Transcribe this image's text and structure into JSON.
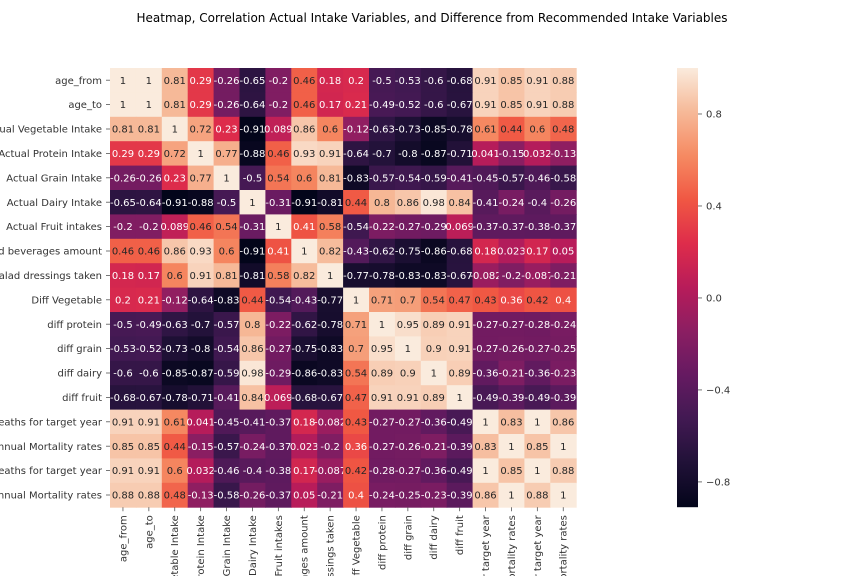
{
  "chart_data": {
    "type": "heatmap",
    "title": "Heatmap, Correlation Actual Intake Variables, and Difference from Recommended Intake Variables",
    "row_labels": [
      "age_from",
      "age_to",
      "ual Vegetable Intake",
      "Actual Protein Intake",
      "Actual Grain Intake",
      "Actual Dairy Intake",
      "Actual Fruit intakes",
      "d beverages amount",
      "alad dressings taken",
      "Diff Vegetable",
      "diff protein",
      "diff grain",
      "diff dairy",
      "diff fruit",
      "eaths for target year",
      "nnual Mortality rates",
      "eaths for target year",
      "nnual Mortality rates"
    ],
    "col_labels": [
      "age_from",
      "age_to",
      "etable Intake",
      "rotein Intake",
      "Grain Intake",
      "Dairy Intake",
      "Fruit intakes",
      "ages amount",
      "essings taken",
      "iff Vegetable",
      "diff protein",
      "diff grain",
      "diff dairy",
      "diff fruit",
      "r target year",
      "ortality rates",
      "r target year",
      "ortality rates"
    ],
    "cell_labels": [
      [
        "1",
        "1",
        "0.81",
        "0.29",
        "-0.26",
        "-0.65",
        "-0.2",
        "0.46",
        "0.18",
        "0.2",
        "-0.5",
        "-0.53",
        "-0.6",
        "-0.68",
        "0.91",
        "0.85",
        "0.91",
        "0.88"
      ],
      [
        "1",
        "1",
        "0.81",
        "0.29",
        "-0.26",
        "-0.64",
        "-0.2",
        "0.46",
        "0.17",
        "0.21",
        "-0.49",
        "-0.52",
        "-0.6",
        "-0.67",
        "0.91",
        "0.85",
        "0.91",
        "0.88"
      ],
      [
        "0.81",
        "0.81",
        "1",
        "0.72",
        "0.23",
        "-0.91",
        "0.089",
        "0.86",
        "0.6",
        "-0.12",
        "-0.63",
        "-0.73",
        "-0.85",
        "-0.78",
        "0.61",
        "0.44",
        "0.6",
        "0.48"
      ],
      [
        "0.29",
        "0.29",
        "0.72",
        "1",
        "0.77",
        "-0.88",
        "0.46",
        "0.93",
        "0.91",
        "-0.64",
        "-0.7",
        "-0.8",
        "-0.87",
        "-0.71",
        "0.041",
        "-0.15",
        "0.032",
        "-0.13"
      ],
      [
        "-0.26",
        "-0.26",
        "0.23",
        "0.77",
        "1",
        "-0.5",
        "0.54",
        "0.6",
        "0.81",
        "-0.83",
        "-0.57",
        "-0.54",
        "-0.59",
        "-0.41",
        "-0.45",
        "-0.57",
        "-0.46",
        "-0.58"
      ],
      [
        "-0.65",
        "-0.64",
        "-0.91",
        "-0.88",
        "-0.5",
        "1",
        "-0.31",
        "-0.91",
        "-0.81",
        "0.44",
        "0.8",
        "0.86",
        "0.98",
        "0.84",
        "-0.41",
        "-0.24",
        "-0.4",
        "-0.26"
      ],
      [
        "-0.2",
        "-0.2",
        "0.089",
        "0.46",
        "0.54",
        "-0.31",
        "1",
        "0.41",
        "0.58",
        "-0.54",
        "-0.22",
        "-0.27",
        "-0.29",
        "0.069",
        "-0.37",
        "-0.37",
        "-0.38",
        "-0.37"
      ],
      [
        "0.46",
        "0.46",
        "0.86",
        "0.93",
        "0.6",
        "-0.91",
        "0.41",
        "1",
        "0.82",
        "-0.43",
        "-0.62",
        "-0.75",
        "-0.86",
        "-0.68",
        "0.18",
        "0.023",
        "0.17",
        "0.05"
      ],
      [
        "0.18",
        "0.17",
        "0.6",
        "0.91",
        "0.81",
        "-0.81",
        "0.58",
        "0.82",
        "1",
        "-0.77",
        "-0.78",
        "-0.83",
        "-0.83",
        "-0.67",
        "-0.082",
        "-0.2",
        "-0.087",
        "-0.21"
      ],
      [
        "0.2",
        "0.21",
        "-0.12",
        "-0.64",
        "-0.83",
        "0.44",
        "-0.54",
        "-0.43",
        "-0.77",
        "1",
        "0.71",
        "0.7",
        "0.54",
        "0.47",
        "0.43",
        "0.36",
        "0.42",
        "0.4"
      ],
      [
        "-0.5",
        "-0.49",
        "-0.63",
        "-0.7",
        "-0.57",
        "0.8",
        "-0.22",
        "-0.62",
        "-0.78",
        "0.71",
        "1",
        "0.95",
        "0.89",
        "0.91",
        "-0.27",
        "-0.27",
        "-0.28",
        "-0.24"
      ],
      [
        "-0.53",
        "-0.52",
        "-0.73",
        "-0.8",
        "-0.54",
        "0.86",
        "-0.27",
        "-0.75",
        "-0.83",
        "0.7",
        "0.95",
        "1",
        "0.9",
        "0.91",
        "-0.27",
        "-0.26",
        "-0.27",
        "-0.25"
      ],
      [
        "-0.6",
        "-0.6",
        "-0.85",
        "-0.87",
        "-0.59",
        "0.98",
        "-0.29",
        "-0.86",
        "-0.83",
        "0.54",
        "0.89",
        "0.9",
        "1",
        "0.89",
        "-0.36",
        "-0.21",
        "-0.36",
        "-0.23"
      ],
      [
        "-0.68",
        "-0.67",
        "-0.78",
        "-0.71",
        "-0.41",
        "0.84",
        "0.069",
        "-0.68",
        "-0.67",
        "0.47",
        "0.91",
        "0.91",
        "0.89",
        "1",
        "-0.49",
        "-0.39",
        "-0.49",
        "-0.39"
      ],
      [
        "0.91",
        "0.91",
        "0.61",
        "0.041",
        "-0.45",
        "-0.41",
        "-0.37",
        "0.18",
        "-0.082",
        "0.43",
        "-0.27",
        "-0.27",
        "-0.36",
        "-0.49",
        "1",
        "0.83",
        "1",
        "0.86"
      ],
      [
        "0.85",
        "0.85",
        "0.44",
        "-0.15",
        "-0.57",
        "-0.24",
        "-0.37",
        "0.023",
        "-0.2",
        "0.36",
        "-0.27",
        "-0.26",
        "-0.21",
        "-0.39",
        "0.83",
        "1",
        "0.85",
        "1"
      ],
      [
        "0.91",
        "0.91",
        "0.6",
        "0.032",
        "-0.46",
        "-0.4",
        "-0.38",
        "0.17",
        "-0.087",
        "0.42",
        "-0.28",
        "-0.27",
        "-0.36",
        "-0.49",
        "1",
        "0.85",
        "1",
        "0.88"
      ],
      [
        "0.88",
        "0.88",
        "0.48",
        "-0.13",
        "-0.58",
        "-0.26",
        "-0.37",
        "0.05",
        "-0.21",
        "0.4",
        "-0.24",
        "-0.25",
        "-0.23",
        "-0.39",
        "0.86",
        "1",
        "0.88",
        "1"
      ]
    ],
    "value_range": [
      -0.91,
      1
    ],
    "colormap": "rocket",
    "colorbar_ticks": [
      "0.8",
      "0.4",
      "0.0",
      "−0.4",
      "−0.8"
    ],
    "colorbar_tick_values": [
      0.8,
      0.4,
      0.0,
      -0.4,
      -0.8
    ],
    "grid": false,
    "legend": "colorbar-right"
  }
}
